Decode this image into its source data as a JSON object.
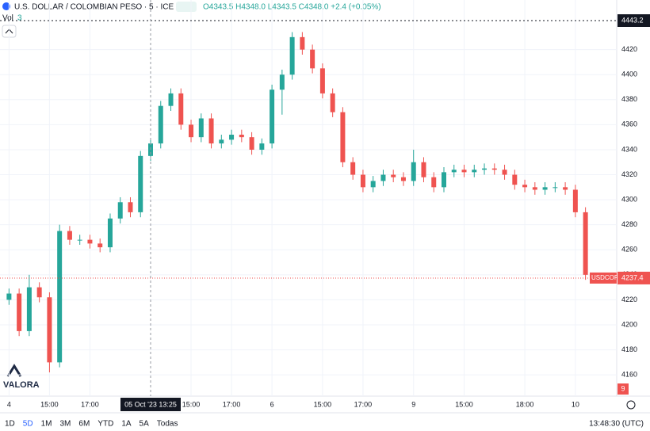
{
  "chart_data": {
    "type": "candlestick",
    "title": "U.S. DOLLAR / COLOMBIAN PESO · 5 · ICE",
    "ohlc_readout": "O4343.5 H4348.0 L4343.5 C4348.0 +2.4 (+0.05%)",
    "volume_label": "Vol",
    "volume_value": 3,
    "volume_last": 9,
    "symbol": "USDCOP",
    "last_price": 4237.4,
    "high_line": 4443.2,
    "crosshair_label": "05 Oct '23 13:25",
    "logo": "VALORA",
    "up_color": "#26a69a",
    "down_color": "#ef5350",
    "categories": [
      "4",
      null,
      null,
      null,
      "15:00",
      null,
      null,
      null,
      "17:00",
      null,
      null,
      null,
      null,
      null,
      null,
      null,
      null,
      null,
      "15:00",
      null,
      null,
      null,
      "17:00",
      null,
      null,
      null,
      "6",
      null,
      null,
      null,
      null,
      "15:00",
      null,
      null,
      null,
      "17:00",
      null,
      null,
      null,
      null,
      "9",
      null,
      null,
      null,
      null,
      "15:00",
      null,
      null,
      null,
      null,
      null,
      "18:00",
      null,
      null,
      null,
      null,
      "10",
      null
    ],
    "open": [
      4220,
      4225,
      4195,
      4230,
      4222,
      4170,
      4275,
      4268,
      4268,
      4265,
      4262,
      4285,
      4298,
      4290,
      4335,
      4345,
      4375,
      4385,
      4360,
      4350,
      4365,
      4345,
      4348,
      4352,
      4350,
      4340,
      4345,
      4388,
      4400,
      4430,
      4420,
      4405,
      4385,
      4370,
      4330,
      4320,
      4310,
      4315,
      4320,
      4318,
      4315,
      4330,
      4318,
      4310,
      4322,
      4324,
      4322,
      4324,
      4325,
      4324,
      4320,
      4312,
      4310,
      4308,
      4310,
      4310,
      4308,
      4290
    ],
    "high": [
      4229,
      4229,
      4240,
      4234,
      4226,
      4280,
      4279,
      4272,
      4272,
      4269,
      4289,
      4302,
      4302,
      4339,
      4349,
      4379,
      4389,
      4389,
      4364,
      4369,
      4369,
      4352,
      4356,
      4356,
      4354,
      4349,
      4392,
      4404,
      4434,
      4434,
      4424,
      4409,
      4389,
      4374,
      4334,
      4324,
      4319,
      4324,
      4324,
      4322,
      4340,
      4334,
      4322,
      4326,
      4328,
      4328,
      4328,
      4329,
      4329,
      4328,
      4324,
      4316,
      4314,
      4314,
      4314,
      4314,
      4312,
      4294
    ],
    "low": [
      4216,
      4191,
      4191,
      4218,
      4162,
      4166,
      4264,
      4264,
      4261,
      4258,
      4258,
      4281,
      4286,
      4286,
      4331,
      4341,
      4371,
      4356,
      4346,
      4346,
      4341,
      4341,
      4344,
      4346,
      4336,
      4336,
      4341,
      4368,
      4396,
      4416,
      4401,
      4381,
      4366,
      4326,
      4316,
      4306,
      4306,
      4311,
      4314,
      4311,
      4311,
      4314,
      4306,
      4306,
      4318,
      4318,
      4318,
      4320,
      4320,
      4316,
      4308,
      4306,
      4304,
      4304,
      4306,
      4304,
      4286,
      4236
    ],
    "close": [
      4225,
      4195,
      4230,
      4222,
      4170,
      4275,
      4268,
      4268,
      4265,
      4262,
      4285,
      4298,
      4290,
      4335,
      4345,
      4375,
      4385,
      4360,
      4350,
      4365,
      4345,
      4348,
      4352,
      4350,
      4340,
      4345,
      4388,
      4400,
      4430,
      4420,
      4405,
      4385,
      4370,
      4330,
      4320,
      4310,
      4315,
      4320,
      4318,
      4315,
      4330,
      4318,
      4310,
      4322,
      4324,
      4322,
      4324,
      4325,
      4324,
      4320,
      4312,
      4310,
      4308,
      4310,
      4310,
      4308,
      4290,
      4240
    ],
    "ylim": [
      4143,
      4447
    ],
    "yticks": [
      4160,
      4180,
      4200,
      4220,
      4240,
      4260,
      4280,
      4300,
      4320,
      4340,
      4360,
      4380,
      4400,
      4420
    ],
    "grid": true,
    "timeframes": [
      "1D",
      "5D",
      "1M",
      "3M",
      "6M",
      "YTD",
      "1A",
      "5A",
      "Todas"
    ],
    "clock": "13:48:30 (UTC)"
  }
}
